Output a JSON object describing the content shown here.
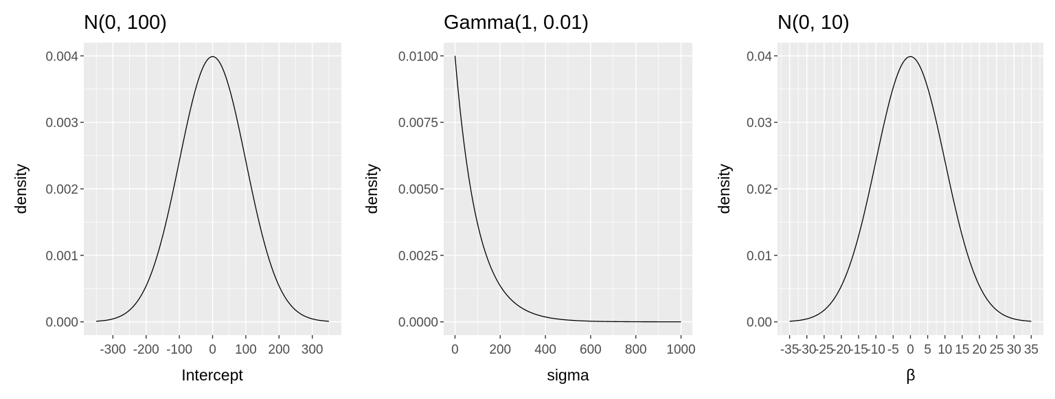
{
  "chart_data": [
    {
      "type": "line",
      "title": "N(0, 100)",
      "xlabel": "Intercept",
      "ylabel": "density",
      "distribution": {
        "family": "normal",
        "mean": 0,
        "sd": 100
      },
      "x_range": [
        -350,
        350
      ],
      "xlim": [
        -387.5,
        387.5
      ],
      "ylim": [
        -0.0002,
        0.0042
      ],
      "x_ticks": [
        -300,
        -200,
        -100,
        0,
        100,
        200,
        300
      ],
      "x_tick_labels": [
        "-300",
        "-200",
        "-100",
        "0",
        "100",
        "200",
        "300"
      ],
      "y_ticks": [
        0,
        0.001,
        0.002,
        0.003,
        0.004
      ],
      "y_tick_labels": [
        "0.000",
        "0.001",
        "0.002",
        "0.003",
        "0.004"
      ],
      "grid": true
    },
    {
      "type": "line",
      "title": "Gamma(1, 0.01)",
      "xlabel": "sigma",
      "ylabel": "density",
      "distribution": {
        "family": "gamma",
        "shape": 1,
        "rate": 0.01
      },
      "x_range": [
        0,
        1000
      ],
      "xlim": [
        -50,
        1050
      ],
      "ylim": [
        -0.0005,
        0.0105
      ],
      "x_ticks": [
        0,
        200,
        400,
        600,
        800,
        1000
      ],
      "x_tick_labels": [
        "0",
        "200",
        "400",
        "600",
        "800",
        "1000"
      ],
      "y_ticks": [
        0,
        0.0025,
        0.005,
        0.0075,
        0.01
      ],
      "y_tick_labels": [
        "0.0000",
        "0.0025",
        "0.0050",
        "0.0075",
        "0.0100"
      ],
      "grid": true
    },
    {
      "type": "line",
      "title": "N(0, 10)",
      "xlabel": "β",
      "ylabel": "density",
      "distribution": {
        "family": "normal",
        "mean": 0,
        "sd": 10
      },
      "x_range": [
        -35,
        35
      ],
      "xlim": [
        -38.5,
        38.5
      ],
      "ylim": [
        -0.002,
        0.042
      ],
      "x_ticks": [
        -35,
        -30,
        -25,
        -20,
        -15,
        -10,
        -5,
        0,
        5,
        10,
        15,
        20,
        25,
        30,
        35
      ],
      "x_tick_labels": [
        "-35",
        "-30",
        "-25",
        "-20",
        "-15",
        "-10",
        "-5",
        "0",
        "5",
        "10",
        "15",
        "20",
        "25",
        "30",
        "35"
      ],
      "y_ticks": [
        0,
        0.01,
        0.02,
        0.03,
        0.04
      ],
      "y_tick_labels": [
        "0.00",
        "0.01",
        "0.02",
        "0.03",
        "0.04"
      ],
      "grid": true
    }
  ]
}
